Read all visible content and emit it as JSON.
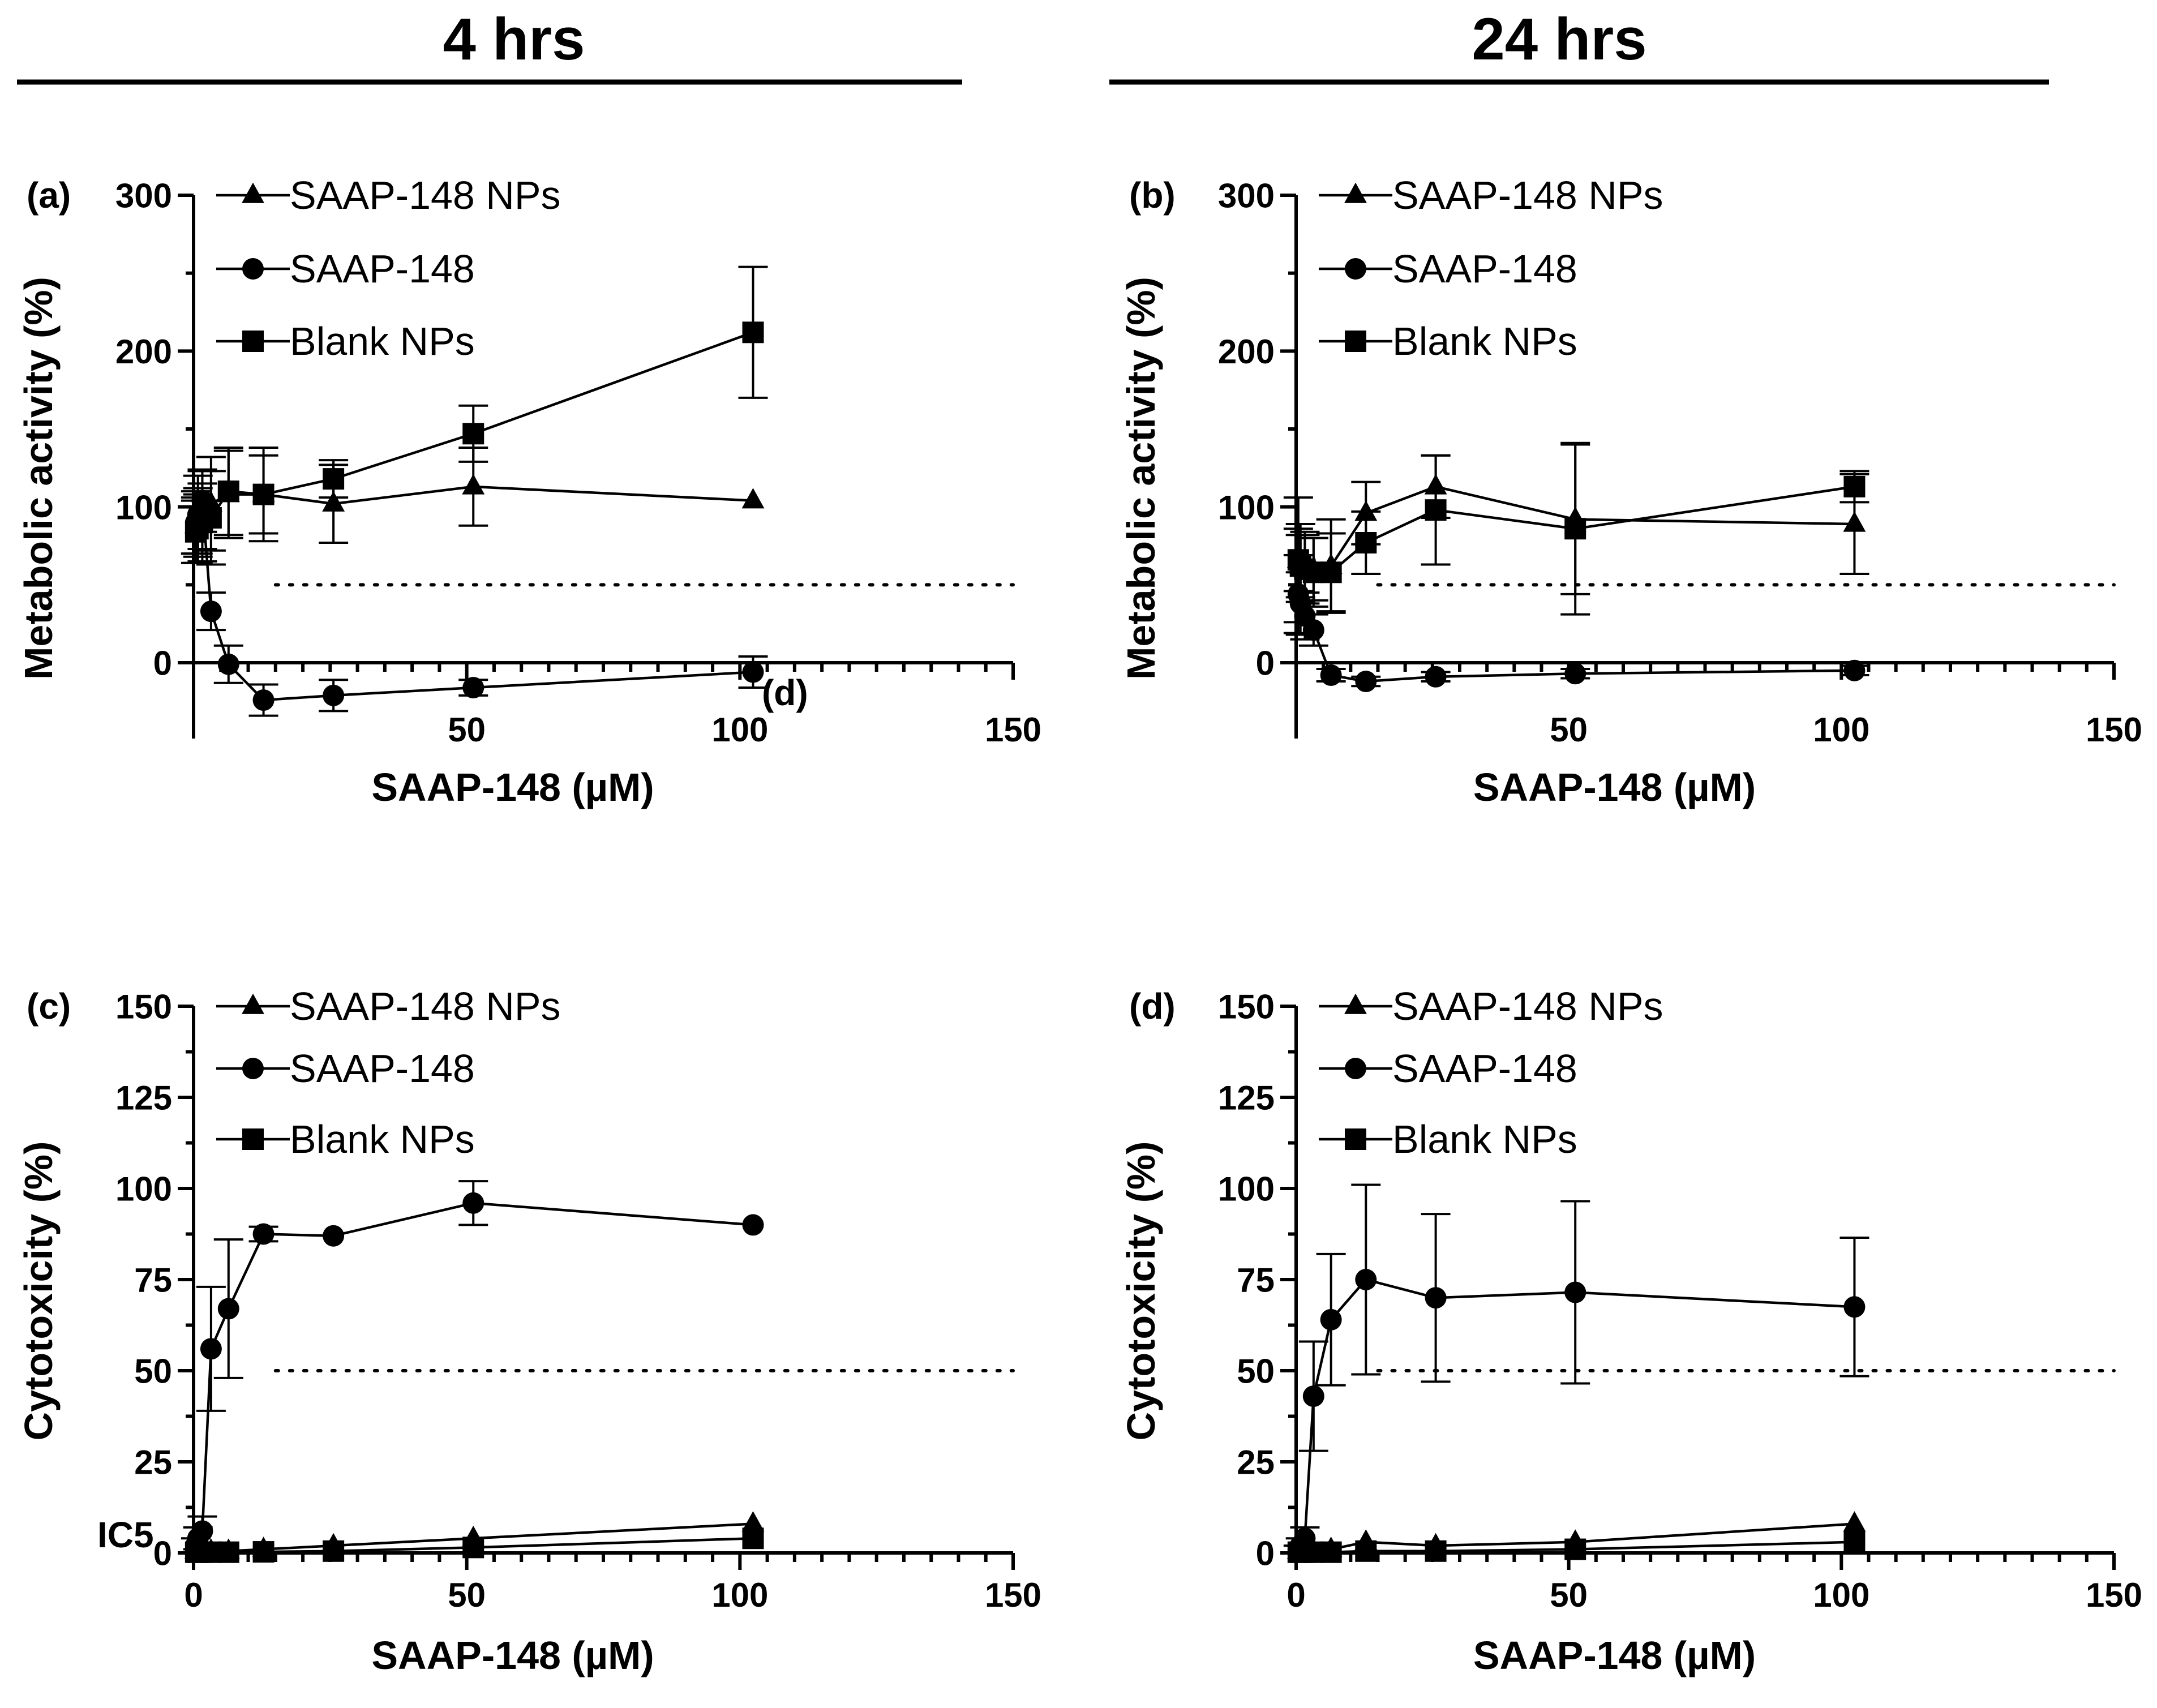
{
  "figure": {
    "headers": [
      "4 hrs",
      "24 hrs"
    ]
  },
  "chart_data": [
    {
      "type": "line",
      "panel_label": "(a)",
      "stray_label": "(d)",
      "xlabel": "SAAP-148 (µM)",
      "ylabel": "Metabolic activity (%)",
      "xlim": [
        0,
        150
      ],
      "ylim": [
        -50,
        300
      ],
      "xticks": [
        0,
        50,
        100,
        150
      ],
      "xtick_labels": [
        "",
        "50",
        "100",
        "150"
      ],
      "yticks": [
        0,
        100,
        200,
        300
      ],
      "ytick_labels": [
        "0",
        "100",
        "200",
        "300"
      ],
      "threshold": 50,
      "legend": [
        "SAAP-148 NPs",
        "SAAP-148",
        "Blank NPs"
      ],
      "series": [
        {
          "name": "SAAP-148 NPs",
          "marker": "triangle",
          "x": [
            0.4,
            0.8,
            1.6,
            3.2,
            6.4,
            12.8,
            25.6,
            51.2,
            102.4
          ],
          "y": [
            88,
            90,
            98,
            102,
            108,
            108,
            102,
            113,
            104
          ],
          "err": [
            18,
            22,
            25,
            30,
            28,
            25,
            25,
            25,
            0
          ]
        },
        {
          "name": "SAAP-148",
          "marker": "circle",
          "x": [
            0.4,
            0.8,
            1.6,
            3.2,
            6.4,
            12.8,
            25.6,
            51.2,
            102.4
          ],
          "y": [
            90,
            95,
            104,
            33,
            -1,
            -24,
            -21,
            -16,
            -6
          ],
          "err": [
            20,
            25,
            20,
            12,
            12,
            10,
            10,
            5,
            10
          ]
        },
        {
          "name": "Blank NPs",
          "marker": "square",
          "x": [
            0.4,
            0.8,
            1.6,
            3.2,
            6.4,
            12.8,
            25.6,
            51.2,
            102.4
          ],
          "y": [
            84,
            86,
            90,
            93,
            110,
            108,
            118,
            147,
            212
          ],
          "err": [
            20,
            22,
            25,
            30,
            28,
            30,
            12,
            18,
            42
          ]
        }
      ]
    },
    {
      "type": "line",
      "panel_label": "(b)",
      "xlabel": "SAAP-148 (µM)",
      "ylabel": "Metabolic activity (%)",
      "xlim": [
        0,
        150
      ],
      "ylim": [
        -50,
        300
      ],
      "xticks": [
        0,
        50,
        100,
        150
      ],
      "xtick_labels": [
        "",
        "50",
        "100",
        "150"
      ],
      "yticks": [
        0,
        100,
        200,
        300
      ],
      "ytick_labels": [
        "0",
        "100",
        "200",
        "300"
      ],
      "threshold": 50,
      "legend": [
        "SAAP-148 NPs",
        "SAAP-148",
        "Blank NPs"
      ],
      "series": [
        {
          "name": "SAAP-148 NPs",
          "marker": "triangle",
          "x": [
            0.4,
            0.8,
            1.6,
            3.2,
            6.4,
            12.8,
            25.6,
            51.2,
            102.4
          ],
          "y": [
            66,
            64,
            62,
            60,
            62,
            96,
            113,
            92,
            89
          ],
          "err": [
            40,
            25,
            22,
            20,
            30,
            20,
            20,
            48,
            32
          ]
        },
        {
          "name": "SAAP-148",
          "marker": "circle",
          "x": [
            0.4,
            0.8,
            1.6,
            3.2,
            6.4,
            12.8,
            25.6,
            51.2,
            102.4
          ],
          "y": [
            44,
            38,
            30,
            21,
            -8,
            -12,
            -9,
            -7,
            -5
          ],
          "err": [
            25,
            20,
            15,
            10,
            4,
            3,
            3,
            3,
            3
          ]
        },
        {
          "name": "Blank NPs",
          "marker": "square",
          "x": [
            0.4,
            0.8,
            1.6,
            3.2,
            6.4,
            12.8,
            25.6,
            51.2,
            102.4
          ],
          "y": [
            66,
            62,
            60,
            58,
            58,
            77,
            98,
            86,
            113
          ],
          "err": [
            20,
            20,
            22,
            22,
            25,
            20,
            35,
            55,
            10
          ]
        }
      ]
    },
    {
      "type": "line",
      "panel_label": "(c)",
      "stray_label": "IC5",
      "xlabel": "SAAP-148 (µM)",
      "ylabel": "Cytotoxicity (%)",
      "xlim": [
        0,
        150
      ],
      "ylim": [
        0,
        150
      ],
      "xticks": [
        0,
        50,
        100,
        150
      ],
      "xtick_labels": [
        "0",
        "50",
        "100",
        "150"
      ],
      "yticks": [
        0,
        25,
        50,
        75,
        100,
        125,
        150
      ],
      "ytick_labels": [
        "0",
        "25",
        "50",
        "75",
        "100",
        "125",
        "150"
      ],
      "threshold": 50,
      "legend": [
        "SAAP-148 NPs",
        "SAAP-148",
        "Blank NPs"
      ],
      "series": [
        {
          "name": "SAAP-148 NPs",
          "marker": "triangle",
          "x": [
            0.4,
            0.8,
            1.6,
            3.2,
            6.4,
            12.8,
            25.6,
            51.2,
            102.4
          ],
          "y": [
            0.5,
            0.5,
            0.5,
            0.5,
            0.5,
            1,
            2,
            4,
            8
          ],
          "err": [
            0,
            0,
            0,
            0,
            0,
            0,
            0,
            0,
            0
          ]
        },
        {
          "name": "SAAP-148",
          "marker": "circle",
          "x": [
            0.4,
            0.8,
            1.6,
            3.2,
            6.4,
            12.8,
            25.6,
            51.2,
            102.4
          ],
          "y": [
            2,
            4,
            6,
            56,
            67,
            87.5,
            87,
            96,
            90
          ],
          "err": [
            2,
            3,
            4,
            17,
            19,
            2,
            0,
            6,
            0
          ]
        },
        {
          "name": "Blank NPs",
          "marker": "square",
          "x": [
            0.4,
            0.8,
            1.6,
            3.2,
            6.4,
            12.8,
            25.6,
            51.2,
            102.4
          ],
          "y": [
            0.2,
            0.2,
            0.2,
            0.2,
            0.2,
            0.3,
            0.5,
            1.5,
            4
          ],
          "err": [
            0,
            0,
            0,
            0,
            0,
            0,
            0,
            0,
            0
          ]
        }
      ]
    },
    {
      "type": "line",
      "panel_label": "(d)",
      "xlabel": "SAAP-148 (µM)",
      "ylabel": "Cytotoxicity (%)",
      "xlim": [
        0,
        150
      ],
      "ylim": [
        0,
        150
      ],
      "xticks": [
        0,
        50,
        100,
        150
      ],
      "xtick_labels": [
        "0",
        "50",
        "100",
        "150"
      ],
      "yticks": [
        0,
        25,
        50,
        75,
        100,
        125,
        150
      ],
      "ytick_labels": [
        "0",
        "25",
        "50",
        "75",
        "100",
        "125",
        "150"
      ],
      "threshold": 50,
      "legend": [
        "SAAP-148 NPs",
        "SAAP-148",
        "Blank NPs"
      ],
      "series": [
        {
          "name": "SAAP-148 NPs",
          "marker": "triangle",
          "x": [
            0.4,
            0.8,
            1.6,
            3.2,
            6.4,
            12.8,
            25.6,
            51.2,
            102.4
          ],
          "y": [
            0.5,
            0.5,
            0.5,
            0.5,
            1,
            3,
            2,
            3,
            8
          ],
          "err": [
            0,
            0,
            0,
            0,
            0,
            0,
            0,
            0,
            0
          ]
        },
        {
          "name": "SAAP-148",
          "marker": "circle",
          "x": [
            0.4,
            0.8,
            1.6,
            3.2,
            6.4,
            12.8,
            25.6,
            51.2,
            102.4
          ],
          "y": [
            1,
            2,
            4,
            43,
            64,
            75,
            70,
            71.5,
            67.5
          ],
          "err": [
            1,
            2,
            3,
            15,
            18,
            26,
            23,
            25,
            19
          ]
        },
        {
          "name": "Blank NPs",
          "marker": "square",
          "x": [
            0.4,
            0.8,
            1.6,
            3.2,
            6.4,
            12.8,
            25.6,
            51.2,
            102.4
          ],
          "y": [
            0.2,
            0.2,
            0.2,
            0.2,
            0.2,
            0.5,
            0.5,
            1,
            3
          ],
          "err": [
            0,
            0,
            0,
            0,
            0,
            0,
            0,
            0,
            0
          ]
        }
      ]
    }
  ]
}
